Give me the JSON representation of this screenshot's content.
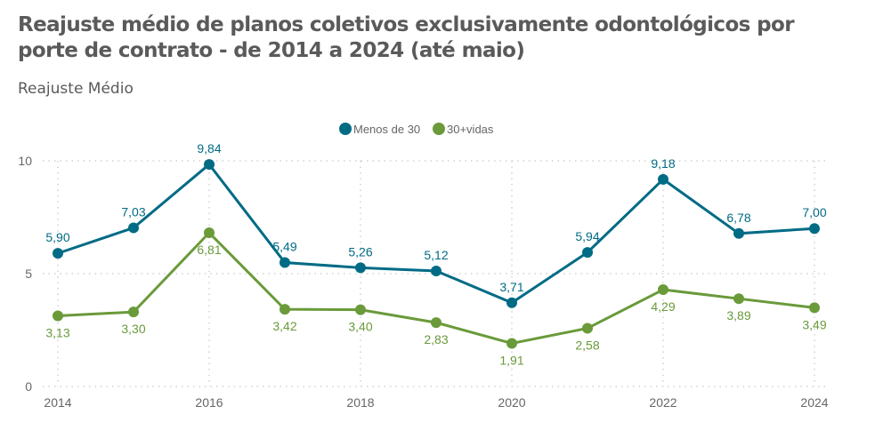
{
  "header": {
    "title": "Reajuste médio de planos coletivos exclusivamente odontológicos por porte de contrato - de 2014 a 2024 (até maio)",
    "subtitle": "Reajuste Médio"
  },
  "chart_data": {
    "type": "line",
    "x": [
      2014,
      2015,
      2016,
      2017,
      2018,
      2019,
      2020,
      2021,
      2022,
      2023,
      2024
    ],
    "x_tick_labels": [
      "2014",
      "2016",
      "2018",
      "2020",
      "2022",
      "2024"
    ],
    "y_tick_labels": [
      "0",
      "5",
      "10"
    ],
    "ylim": [
      0,
      10
    ],
    "xlim": [
      2014,
      2024
    ],
    "grid": true,
    "legend_position": "top",
    "series": [
      {
        "name": "Menos de 30",
        "color": "#006b85",
        "values": [
          5.9,
          7.03,
          9.84,
          5.49,
          5.26,
          5.12,
          3.71,
          5.94,
          9.18,
          6.78,
          7.0
        ],
        "labels": [
          "5,90",
          "7,03",
          "9,84",
          "5,49",
          "5,26",
          "5,12",
          "3,71",
          "5,94",
          "9,18",
          "6,78",
          "7,00"
        ]
      },
      {
        "name": "30+vidas",
        "color": "#6a9a3a",
        "values": [
          3.13,
          3.3,
          6.81,
          3.42,
          3.4,
          2.83,
          1.91,
          2.58,
          4.29,
          3.89,
          3.49
        ],
        "labels": [
          "3,13",
          "3,30",
          "6,81",
          "3,42",
          "3,40",
          "2,83",
          "1,91",
          "2,58",
          "4,29",
          "3,89",
          "3,49"
        ]
      }
    ]
  }
}
